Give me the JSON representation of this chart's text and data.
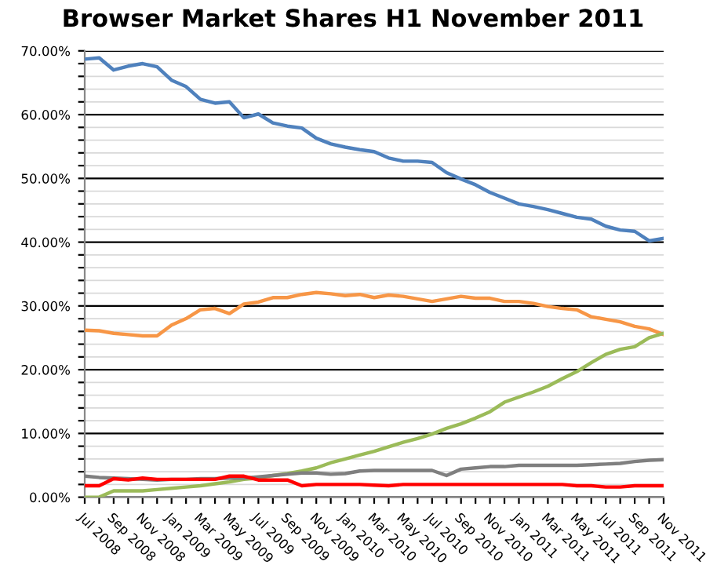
{
  "chart_data": {
    "type": "line",
    "title": "Browser Market Shares H1 November 2011",
    "categories": [
      "Jul 2008",
      null,
      "Sep 2008",
      null,
      "Nov 2008",
      null,
      "Jan 2009",
      null,
      "Mar 2009",
      null,
      "May 2009",
      null,
      "Jul 2009",
      null,
      "Sep 2009",
      null,
      "Nov 2009",
      null,
      "Jan 2010",
      null,
      "Mar 2010",
      null,
      "May 2010",
      null,
      "Jul 2010",
      null,
      "Sep 2010",
      null,
      "Nov 2010",
      null,
      "Jan 2011",
      null,
      "Mar 2011",
      null,
      "May 2011",
      null,
      "Jul 2011",
      null,
      "Sep 2011",
      null,
      "Nov 2011"
    ],
    "series": [
      {
        "color": "#4f81bd",
        "values": [
          68.7,
          68.9,
          67.0,
          67.6,
          68.0,
          67.5,
          65.4,
          64.4,
          62.4,
          61.8,
          62.0,
          59.5,
          60.1,
          58.7,
          58.2,
          57.9,
          56.3,
          55.4,
          54.9,
          54.5,
          54.2,
          53.2,
          52.7,
          52.7,
          52.5,
          50.9,
          49.9,
          49.0,
          47.8,
          46.9,
          46.0,
          45.6,
          45.1,
          44.5,
          43.9,
          43.6,
          42.5,
          41.9,
          41.7,
          40.2,
          40.6
        ]
      },
      {
        "color": "#f79646",
        "values": [
          26.2,
          26.1,
          25.7,
          25.5,
          25.3,
          25.3,
          27.0,
          28.0,
          29.4,
          29.6,
          28.8,
          30.3,
          30.6,
          31.3,
          31.3,
          31.8,
          32.1,
          31.9,
          31.6,
          31.8,
          31.3,
          31.7,
          31.5,
          31.1,
          30.7,
          31.1,
          31.5,
          31.2,
          31.2,
          30.7,
          30.7,
          30.4,
          29.9,
          29.6,
          29.4,
          28.3,
          27.9,
          27.5,
          26.8,
          26.4,
          25.5
        ]
      },
      {
        "color": "#9bbb59",
        "values": [
          0.0,
          0.0,
          1.0,
          1.0,
          1.0,
          1.2,
          1.4,
          1.6,
          1.8,
          2.1,
          2.4,
          2.8,
          3.0,
          3.4,
          3.7,
          4.1,
          4.6,
          5.4,
          6.0,
          6.6,
          7.2,
          7.9,
          8.6,
          9.2,
          9.9,
          10.8,
          11.5,
          12.4,
          13.4,
          14.9,
          15.7,
          16.5,
          17.4,
          18.6,
          19.7,
          21.1,
          22.4,
          23.2,
          23.6,
          25.0,
          25.7
        ]
      },
      {
        "color": "#7f7f7f",
        "values": [
          3.3,
          3.1,
          3.0,
          2.9,
          2.8,
          2.7,
          2.8,
          2.8,
          2.9,
          2.9,
          3.0,
          3.0,
          3.2,
          3.4,
          3.6,
          3.8,
          3.8,
          3.6,
          3.7,
          4.1,
          4.2,
          4.2,
          4.2,
          4.2,
          4.2,
          3.4,
          4.4,
          4.6,
          4.8,
          4.8,
          5.0,
          5.0,
          5.0,
          5.0,
          5.0,
          5.1,
          5.2,
          5.3,
          5.6,
          5.8,
          5.9
        ]
      },
      {
        "color": "#ff0000",
        "values": [
          1.8,
          1.8,
          2.9,
          2.7,
          3.0,
          2.8,
          2.8,
          2.8,
          2.8,
          2.8,
          3.3,
          3.3,
          2.7,
          2.7,
          2.7,
          1.8,
          2.0,
          2.0,
          2.0,
          2.0,
          1.9,
          1.8,
          2.0,
          2.0,
          2.0,
          2.0,
          2.0,
          2.0,
          2.0,
          2.0,
          2.0,
          2.0,
          2.0,
          2.0,
          1.8,
          1.8,
          1.6,
          1.6,
          1.8,
          1.8,
          1.8
        ]
      }
    ],
    "ylim": [
      0,
      70
    ],
    "yticks": [
      {
        "value": 0,
        "label": "0.00%"
      },
      {
        "value": 2,
        "label": null
      },
      {
        "value": 4,
        "label": null
      },
      {
        "value": 6,
        "label": null
      },
      {
        "value": 8,
        "label": null
      },
      {
        "value": 10,
        "label": "10.00%"
      },
      {
        "value": 12,
        "label": null
      },
      {
        "value": 14,
        "label": null
      },
      {
        "value": 16,
        "label": null
      },
      {
        "value": 18,
        "label": null
      },
      {
        "value": 20,
        "label": "20.00%"
      },
      {
        "value": 22,
        "label": null
      },
      {
        "value": 24,
        "label": null
      },
      {
        "value": 26,
        "label": null
      },
      {
        "value": 28,
        "label": null
      },
      {
        "value": 30,
        "label": "30.00%"
      },
      {
        "value": 32,
        "label": null
      },
      {
        "value": 34,
        "label": null
      },
      {
        "value": 36,
        "label": null
      },
      {
        "value": 38,
        "label": null
      },
      {
        "value": 40,
        "label": "40.00%"
      },
      {
        "value": 42,
        "label": null
      },
      {
        "value": 44,
        "label": null
      },
      {
        "value": 46,
        "label": null
      },
      {
        "value": 48,
        "label": null
      },
      {
        "value": 50,
        "label": "50.00%"
      },
      {
        "value": 52,
        "label": null
      },
      {
        "value": 54,
        "label": null
      },
      {
        "value": 56,
        "label": null
      },
      {
        "value": 58,
        "label": null
      },
      {
        "value": 60,
        "label": "60.00%"
      },
      {
        "value": 62,
        "label": null
      },
      {
        "value": 64,
        "label": null
      },
      {
        "value": 66,
        "label": null
      },
      {
        "value": 68,
        "label": null
      },
      {
        "value": 70,
        "label": "70.00%"
      }
    ],
    "grid": "y",
    "legend": false
  }
}
